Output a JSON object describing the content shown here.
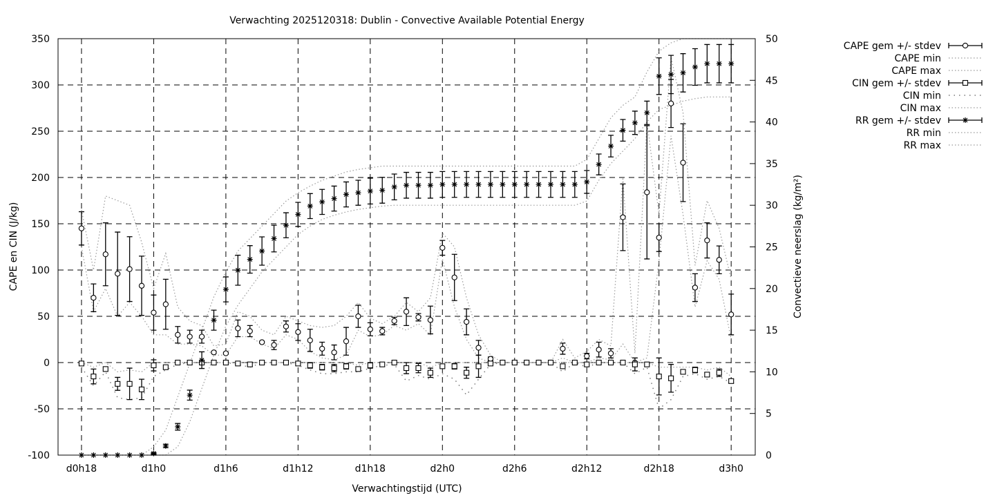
{
  "chart_data": {
    "type": "line",
    "title": "Verwachting 2025120318: Dublin - Convective Available Potential Energy",
    "xlabel": "Verwachtingstijd (UTC)",
    "ylabel": "CAPE en CIN (J/kg)",
    "y2label": "Convectieve neerslag (kg/m²)",
    "xlim_hours": [
      16.05,
      74
    ],
    "ylim": [
      -100,
      350
    ],
    "y2lim": [
      0,
      50
    ],
    "grid": true,
    "legend_position": "outside-right-top",
    "x_ticks": [
      {
        "hour": 18,
        "label": "d0h18"
      },
      {
        "hour": 24,
        "label": "d1h0"
      },
      {
        "hour": 30,
        "label": "d1h6"
      },
      {
        "hour": 36,
        "label": "d1h12"
      },
      {
        "hour": 42,
        "label": "d1h18"
      },
      {
        "hour": 48,
        "label": "d2h0"
      },
      {
        "hour": 54,
        "label": "d2h6"
      },
      {
        "hour": 60,
        "label": "d2h12"
      },
      {
        "hour": 66,
        "label": "d2h18"
      },
      {
        "hour": 72,
        "label": "d3h0"
      }
    ],
    "y_ticks": [
      "-100",
      "-50",
      "0",
      "50",
      "100",
      "150",
      "200",
      "250",
      "300",
      "350"
    ],
    "y2_ticks": [
      "0",
      "5",
      "10",
      "15",
      "20",
      "25",
      "30",
      "35",
      "40",
      "45",
      "50"
    ],
    "hours_start": 18,
    "series": [
      {
        "name": "CAPE gem +/- stdev",
        "kind": "errorbar",
        "marker": "circle",
        "axis": "y",
        "mean": [
          145,
          70,
          117,
          96,
          101,
          83,
          54,
          63,
          30,
          28,
          28,
          11,
          10,
          37,
          34,
          22,
          19,
          39,
          33,
          24,
          15,
          11,
          23,
          50,
          36,
          34,
          45,
          55,
          49,
          46,
          124,
          92,
          44,
          16,
          4,
          0,
          0,
          0,
          0,
          0,
          15,
          0,
          7,
          14,
          10,
          157,
          0,
          184,
          135,
          280,
          216,
          81,
          132,
          111,
          52
        ],
        "stdev": [
          18,
          15,
          34,
          45,
          35,
          32,
          19,
          27,
          9,
          7,
          7,
          1,
          1,
          9,
          6,
          1,
          5,
          6,
          9,
          12,
          7,
          8,
          15,
          12,
          7,
          4,
          4,
          15,
          4,
          15,
          8,
          25,
          14,
          8,
          2,
          0,
          0,
          0,
          0,
          0,
          6,
          0,
          3,
          8,
          5,
          36,
          0,
          72,
          15,
          26,
          42,
          15,
          19,
          15,
          22
        ]
      },
      {
        "name": "CAPE min",
        "kind": "line",
        "style": "cape",
        "axis": "y",
        "values": [
          125,
          55,
          80,
          50,
          65,
          50,
          30,
          30,
          20,
          20,
          18,
          8,
          8,
          28,
          28,
          20,
          15,
          30,
          25,
          12,
          5,
          3,
          8,
          35,
          28,
          30,
          40,
          35,
          42,
          30,
          112,
          60,
          25,
          5,
          0,
          0,
          0,
          0,
          0,
          0,
          5,
          0,
          0,
          5,
          3,
          20,
          0,
          5,
          110,
          245,
          160,
          60,
          110,
          90,
          25
        ]
      },
      {
        "name": "CAPE max",
        "kind": "line",
        "style": "cape",
        "axis": "y",
        "values": [
          165,
          100,
          180,
          175,
          170,
          130,
          80,
          118,
          60,
          45,
          40,
          18,
          20,
          55,
          50,
          35,
          30,
          50,
          45,
          40,
          38,
          40,
          50,
          65,
          48,
          42,
          50,
          65,
          55,
          70,
          140,
          125,
          70,
          30,
          8,
          0,
          0,
          0,
          0,
          0,
          25,
          5,
          12,
          25,
          18,
          200,
          10,
          260,
          160,
          330,
          270,
          105,
          175,
          145,
          90
        ]
      },
      {
        "name": "CIN gem +/- stdev",
        "kind": "errorbar",
        "marker": "square",
        "axis": "y",
        "mean": [
          -1,
          -15,
          -7,
          -23,
          -23,
          -29,
          -3,
          -5,
          0,
          0,
          0,
          0,
          0,
          -1,
          -2,
          0,
          0,
          0,
          -1,
          -3,
          -5,
          -6,
          -4,
          -7,
          -3,
          -2,
          0,
          -6,
          -6,
          -11,
          -4,
          -4,
          -11,
          -4,
          -1,
          0,
          0,
          0,
          0,
          0,
          -4,
          0,
          -2,
          0,
          0,
          0,
          -2,
          -2,
          -15,
          -17,
          -10,
          -8,
          -13,
          -11,
          -20
        ],
        "stdev": [
          0,
          8,
          0,
          7,
          17,
          11,
          6,
          0,
          0,
          0,
          0,
          0,
          0,
          0,
          2,
          0,
          0,
          0,
          0,
          3,
          3,
          4,
          3,
          0,
          3,
          0,
          0,
          6,
          5,
          5,
          0,
          3,
          6,
          12,
          0,
          0,
          0,
          0,
          0,
          0,
          0,
          0,
          0,
          0,
          0,
          0,
          7,
          0,
          20,
          15,
          0,
          3,
          2,
          4,
          2
        ]
      },
      {
        "name": "CIN min",
        "kind": "line",
        "style": "cin",
        "axis": "y",
        "values": [
          -5,
          -25,
          -10,
          -38,
          -40,
          -38,
          -15,
          -8,
          -2,
          0,
          0,
          0,
          0,
          -2,
          -5,
          0,
          0,
          0,
          -3,
          -8,
          -12,
          -12,
          -10,
          -10,
          -6,
          -3,
          -2,
          -20,
          -14,
          -18,
          -12,
          -18,
          -35,
          -18,
          -2,
          0,
          0,
          0,
          0,
          0,
          -10,
          0,
          -5,
          0,
          0,
          0,
          -12,
          -5,
          -50,
          -40,
          -15,
          -12,
          -18,
          -15,
          -22
        ]
      },
      {
        "name": "CIN max",
        "kind": "line",
        "style": "cape",
        "axis": "y",
        "values": [
          0,
          -5,
          0,
          -10,
          -8,
          -10,
          0,
          0,
          0,
          0,
          0,
          0,
          0,
          0,
          0,
          0,
          0,
          0,
          0,
          0,
          0,
          0,
          0,
          -3,
          0,
          0,
          0,
          0,
          0,
          -5,
          0,
          0,
          0,
          0,
          0,
          0,
          0,
          0,
          0,
          0,
          0,
          0,
          0,
          0,
          0,
          0,
          0,
          0,
          -5,
          -5,
          -5,
          -5,
          -8,
          -5,
          -15
        ]
      },
      {
        "name": "RR gem +/- stdev",
        "kind": "errorbar",
        "marker": "asterisk",
        "axis": "y2",
        "mean": [
          0,
          0,
          0,
          0,
          0,
          0,
          0.2,
          1.1,
          3.4,
          7.2,
          11.4,
          16.2,
          19.9,
          22.2,
          23.5,
          24.5,
          26,
          27.6,
          28.9,
          29.9,
          30.4,
          30.8,
          31.3,
          31.5,
          31.7,
          31.8,
          32.2,
          32.4,
          32.4,
          32.4,
          32.5,
          32.5,
          32.5,
          32.5,
          32.5,
          32.5,
          32.5,
          32.5,
          32.5,
          32.5,
          32.5,
          32.5,
          32.8,
          34.9,
          37.1,
          39,
          39.9,
          41.1,
          45.5,
          45.7,
          45.9,
          46.6,
          47,
          47,
          47
        ],
        "stdev": [
          0,
          0,
          0,
          0,
          0,
          0,
          0.1,
          0.2,
          0.4,
          0.6,
          1.0,
          1.2,
          1.5,
          1.8,
          1.65,
          1.7,
          1.6,
          1.5,
          1.45,
          1.5,
          1.5,
          1.5,
          1.5,
          1.5,
          1.55,
          1.55,
          1.55,
          1.55,
          1.55,
          1.55,
          1.55,
          1.55,
          1.55,
          1.55,
          1.55,
          1.55,
          1.55,
          1.55,
          1.55,
          1.55,
          1.55,
          1.55,
          1.37,
          1.25,
          1.3,
          1.3,
          1.4,
          1.4,
          2.2,
          2.3,
          2.3,
          2.2,
          2.3,
          2.3,
          2.3
        ]
      },
      {
        "name": "RR min",
        "kind": "line",
        "style": "cape",
        "axis": "y2",
        "values": [
          0,
          0,
          0,
          0,
          0,
          0,
          0,
          0,
          1,
          4,
          8,
          12,
          15.5,
          18,
          20,
          22,
          23.5,
          25,
          26.5,
          27.5,
          28.3,
          28.8,
          29.2,
          29.5,
          29.7,
          29.9,
          30,
          30,
          30,
          30,
          30,
          30,
          30,
          30,
          30,
          30,
          30,
          30,
          30,
          30,
          30,
          30,
          30.5,
          33,
          35,
          36.5,
          38,
          40,
          41.5,
          42,
          42.5,
          42.8,
          43,
          43,
          43
        ]
      },
      {
        "name": "RR max",
        "kind": "line",
        "style": "cape",
        "axis": "y2",
        "values": [
          0,
          0,
          0,
          0,
          0,
          0,
          1,
          3,
          7,
          11,
          15,
          19,
          22,
          24.5,
          26,
          27.5,
          29,
          30.5,
          31.5,
          32.3,
          33,
          33.5,
          34,
          34.3,
          34.5,
          34.7,
          34.7,
          34.7,
          34.7,
          34.7,
          34.7,
          34.7,
          34.7,
          34.7,
          34.7,
          34.7,
          34.7,
          34.7,
          34.7,
          34.7,
          34.7,
          34.7,
          35.5,
          38,
          40.5,
          42,
          43,
          46,
          48.5,
          49.5,
          50,
          50,
          50,
          50,
          50
        ]
      }
    ]
  }
}
